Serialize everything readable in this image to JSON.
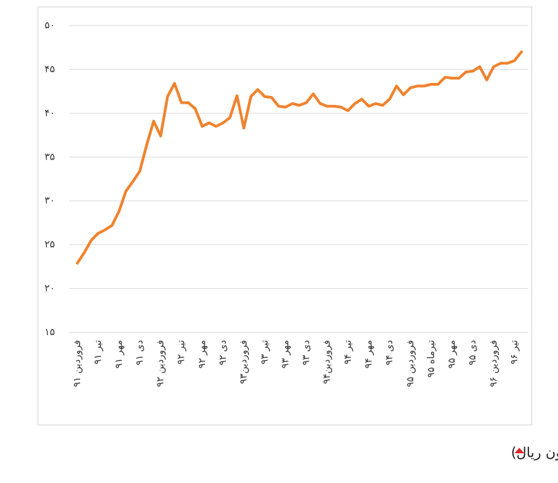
{
  "chart_data": {
    "type": "line",
    "title": "متوسط قیمت یک مترمربع مسکن در تهران(میلیون ریال)",
    "categories": [
      "فروردین ۹۱",
      null,
      null,
      "تیر ۹۱",
      null,
      null,
      "مهر ۹۱",
      null,
      null,
      "دی ۹۱",
      null,
      null,
      "فروردین ۹۲",
      null,
      null,
      "تیر ۹۲",
      null,
      null,
      "مهر ۹۲",
      null,
      null,
      "دی ۹۲",
      null,
      null,
      "فروردین۹۳",
      null,
      null,
      "تیر ۹۳",
      null,
      null,
      "مهر ۹۳",
      null,
      null,
      "دی ۹۳",
      null,
      null,
      "فروردین۹۴",
      null,
      null,
      "تیر ۹۴",
      null,
      null,
      "مهر ۹۴",
      null,
      null,
      "دی ۹۴",
      null,
      null,
      "فروردین ۹۵",
      null,
      null,
      "تیرماه ۹۵",
      null,
      null,
      "مهر ۹۵",
      null,
      null,
      "دی ۹۵",
      null,
      null,
      "فروردین ۹۶",
      null,
      null,
      "تیر ۹۶",
      null
    ],
    "series": [
      {
        "color": "#f0822d",
        "values": [
          22.9,
          24.1,
          25.5,
          26.3,
          26.7,
          27.2,
          28.8,
          31.1,
          32.2,
          33.4,
          36.4,
          39.1,
          37.4,
          41.9,
          43.4,
          41.2,
          41.2,
          40.5,
          38.5,
          38.9,
          38.5,
          38.9,
          39.5,
          42.0,
          38.3,
          41.9,
          42.7,
          41.9,
          41.8,
          40.8,
          40.7,
          41.1,
          40.9,
          41.2,
          42.2,
          41.1,
          40.8,
          40.8,
          40.7,
          40.3,
          41.1,
          41.6,
          40.8,
          41.1,
          40.9,
          41.6,
          43.1,
          42.1,
          42.9,
          43.1,
          43.1,
          43.3,
          43.3,
          44.1,
          44.0,
          44.0,
          44.7,
          44.8,
          45.3,
          43.8,
          45.3,
          45.7,
          45.7,
          46.0,
          47.0
        ]
      }
    ],
    "ylim": [
      15,
      50
    ],
    "yticks": [
      {
        "value": 15,
        "label": "۱۵"
      },
      {
        "value": 20,
        "label": "۲۰"
      },
      {
        "value": 25,
        "label": "۲۵"
      },
      {
        "value": 30,
        "label": "۳۰"
      },
      {
        "value": 35,
        "label": "۳۵"
      },
      {
        "value": 40,
        "label": "۴۰"
      },
      {
        "value": 45,
        "label": "۴۵"
      },
      {
        "value": 50,
        "label": "۵۰"
      }
    ],
    "grid": true
  }
}
